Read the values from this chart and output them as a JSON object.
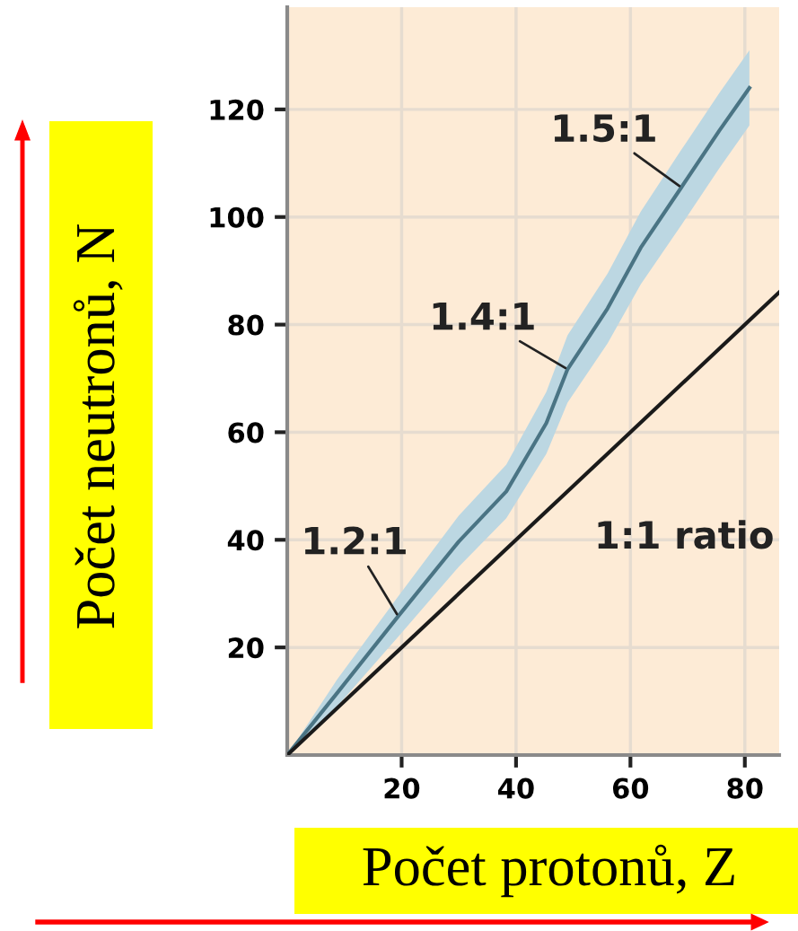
{
  "chart_data": {
    "type": "line",
    "xlabel": "Počet protonů, Z",
    "ylabel": "Počet neutronů, N",
    "series": [
      {
        "color": "#4a7484",
        "x": [
          0,
          8.7,
          19.4,
          30,
          38.3,
          45.3,
          49,
          56,
          61.8,
          68.9,
          75.5,
          80.8
        ],
        "values": [
          0,
          11.5,
          25.8,
          39.7,
          49,
          61.7,
          71.7,
          83,
          94.3,
          105.5,
          116,
          124
        ],
        "lower": [
          0,
          9,
          22,
          35,
          44,
          56,
          65.5,
          76.5,
          87.5,
          98.5,
          109,
          117
        ],
        "upper": [
          0,
          14,
          29.5,
          44.5,
          54,
          67.5,
          78,
          89.5,
          101,
          112.5,
          123,
          131
        ]
      },
      {
        "color": "#1a1a1a",
        "x": [
          0,
          86
        ],
        "values": [
          0,
          86
        ]
      }
    ],
    "xlim": [
      0,
      86
    ],
    "ylim": [
      0,
      139
    ],
    "xticks": [
      20,
      40,
      60,
      80
    ],
    "yticks": [
      20,
      40,
      60,
      80,
      100,
      120
    ],
    "grid": true,
    "annotations": [
      {
        "text": "1.5:1",
        "x": 68.9,
        "y": 105.5
      },
      {
        "text": "1.4:1",
        "x": 49,
        "y": 71.7
      },
      {
        "text": "1.2:1",
        "x": 19.4,
        "y": 25.8
      },
      "1:1 ratio"
    ]
  }
}
